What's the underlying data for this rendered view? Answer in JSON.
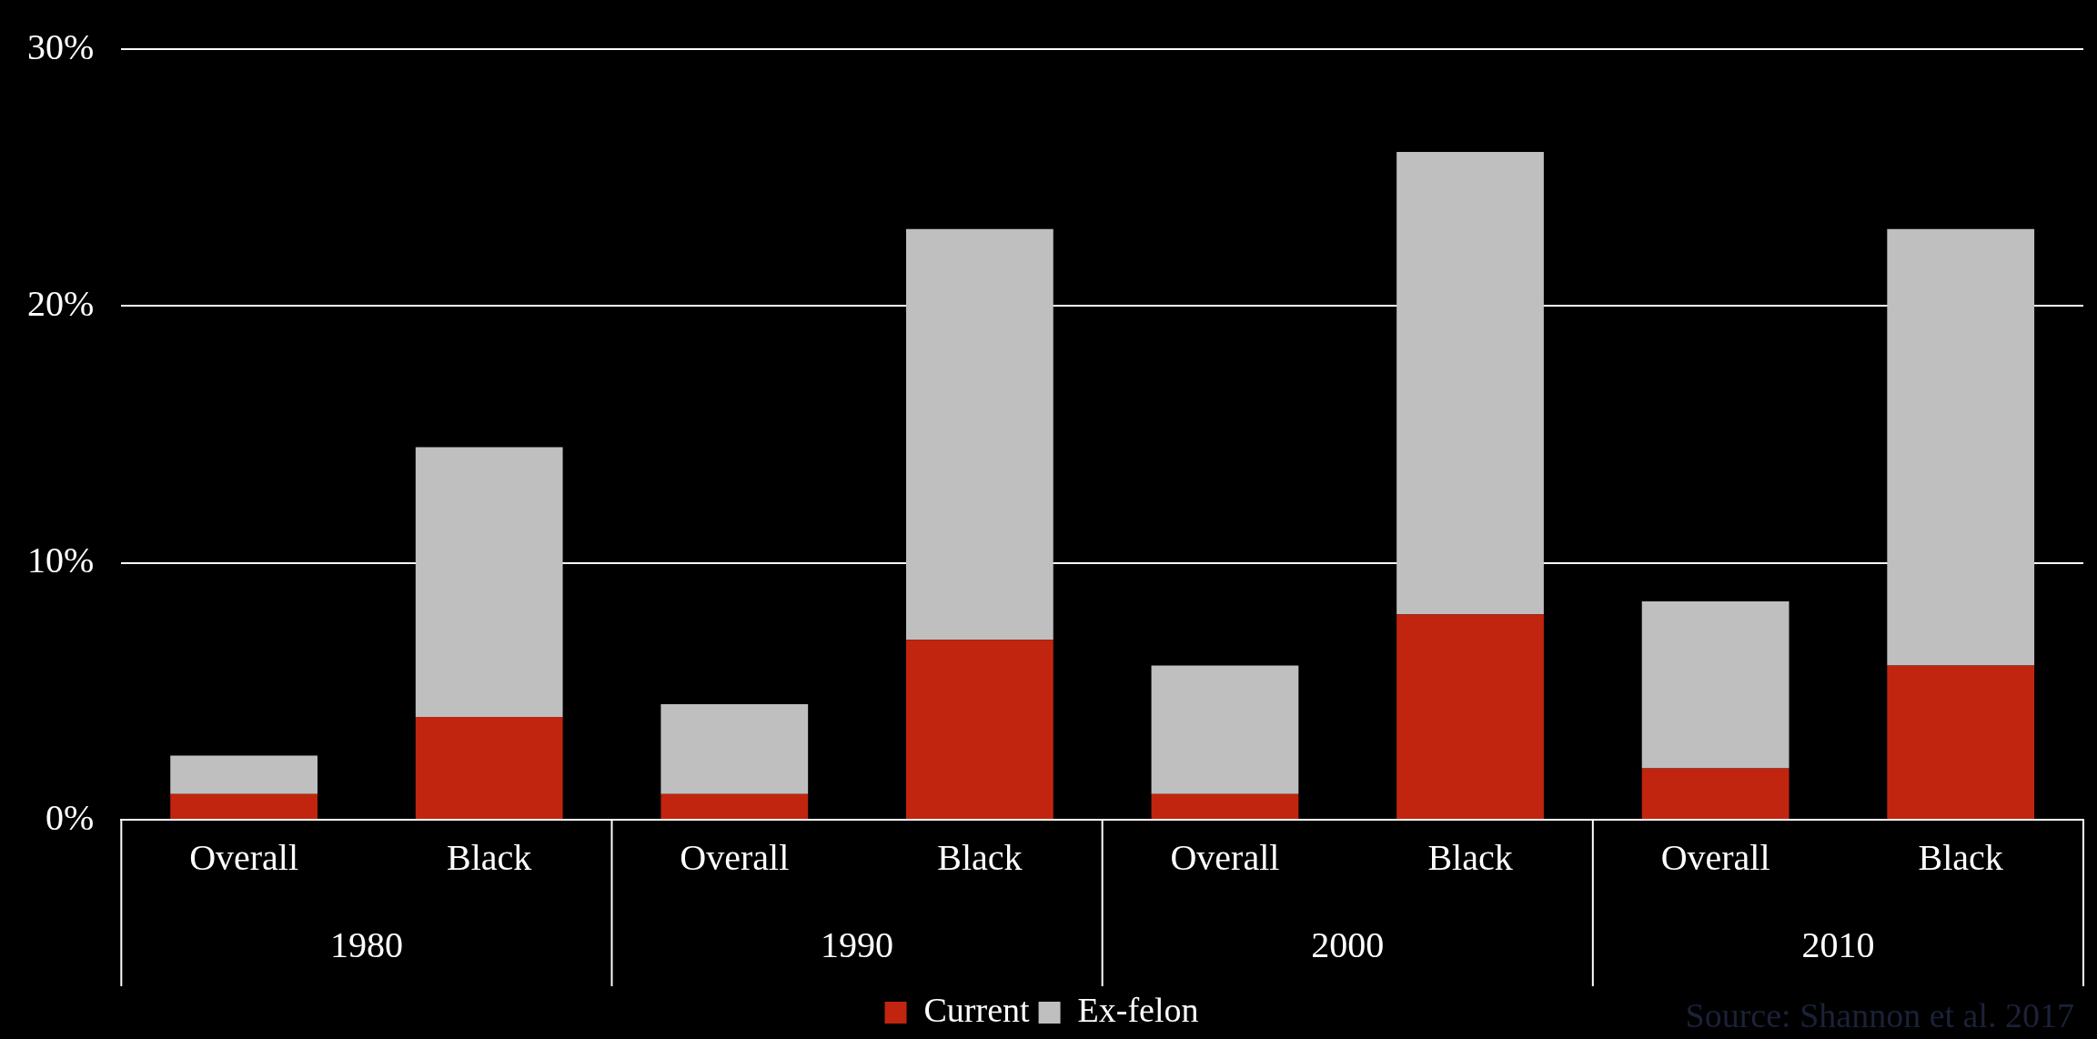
{
  "chart_data": {
    "type": "bar",
    "stacked": true,
    "categories": [
      "Overall",
      "Black",
      "Overall",
      "Black",
      "Overall",
      "Black",
      "Overall",
      "Black"
    ],
    "series": [
      {
        "name": "Current",
        "color": "#c2250f",
        "values": [
          1,
          4,
          1,
          7,
          1,
          8,
          2,
          6
        ]
      },
      {
        "name": "Ex-felon",
        "color": "#bfbfbf",
        "values": [
          1.5,
          10.5,
          3.5,
          16,
          5,
          18,
          6.5,
          17
        ]
      }
    ],
    "ylim": [
      0,
      30
    ],
    "yticks": [
      {
        "value": 0,
        "label": "0%"
      },
      {
        "value": 10,
        "label": "10%"
      },
      {
        "value": 20,
        "label": "20%"
      },
      {
        "value": 30,
        "label": "30%"
      }
    ],
    "grid": "y",
    "legend": "bottom",
    "annotations": [
      "1980",
      "1990",
      "2000",
      "2010",
      "Source: Shannon et al. 2017"
    ]
  }
}
